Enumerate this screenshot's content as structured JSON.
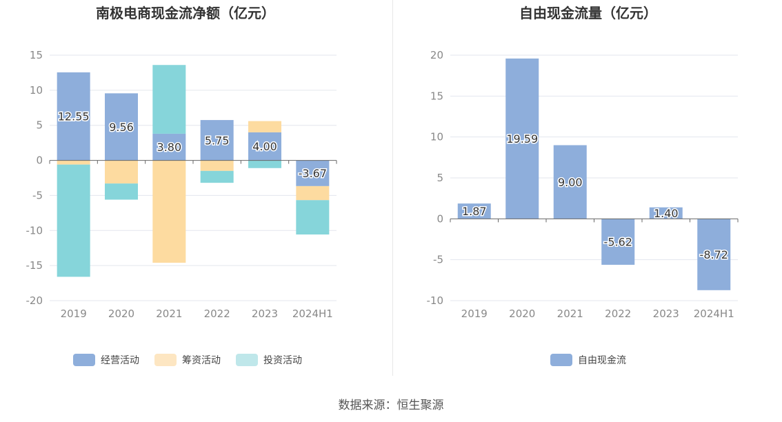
{
  "chart_data": [
    {
      "type": "bar",
      "stacked": true,
      "title": "南极电商现金流净额（亿元）",
      "categories": [
        "2019",
        "2020",
        "2021",
        "2022",
        "2023",
        "2024H1"
      ],
      "ylim": [
        -20,
        15
      ],
      "yticks": [
        15,
        10,
        5,
        0,
        -5,
        -10,
        -15,
        -20
      ],
      "series": [
        {
          "name": "经营活动",
          "color": "#8eaedb",
          "values": [
            12.55,
            9.56,
            3.8,
            5.75,
            4.0,
            -3.67
          ]
        },
        {
          "name": "筹资活动",
          "color": "#fddba0",
          "values": [
            -0.6,
            -3.3,
            -14.6,
            -1.5,
            1.6,
            -2.0
          ]
        },
        {
          "name": "投资活动",
          "color": "#86d5da",
          "values": [
            -16.0,
            -2.3,
            9.8,
            -1.7,
            -1.1,
            -4.9
          ]
        }
      ],
      "data_labels": [
        "12.55",
        "9.56",
        "3.80",
        "5.75",
        "4.00",
        "-3.67"
      ],
      "legend": [
        "经营活动",
        "筹资活动",
        "投资活动"
      ],
      "legend_colors": [
        "#8eaedb",
        "#fde6c2",
        "#bfe7ea"
      ]
    },
    {
      "type": "bar",
      "title": "自由现金流量（亿元）",
      "categories": [
        "2019",
        "2020",
        "2021",
        "2022",
        "2023",
        "2024H1"
      ],
      "ylim": [
        -10,
        20
      ],
      "yticks": [
        20,
        15,
        10,
        5,
        0,
        -5,
        -10
      ],
      "series": [
        {
          "name": "自由现金流",
          "color": "#8eaedb",
          "values": [
            1.87,
            19.59,
            9.0,
            -5.62,
            1.4,
            -8.72
          ]
        }
      ],
      "data_labels": [
        "1.87",
        "19.59",
        "9.00",
        "-5.62",
        "1.40",
        "-8.72"
      ],
      "legend": [
        "自由现金流"
      ],
      "legend_colors": [
        "#8eaedb"
      ]
    }
  ],
  "source": "数据来源：恒生聚源"
}
